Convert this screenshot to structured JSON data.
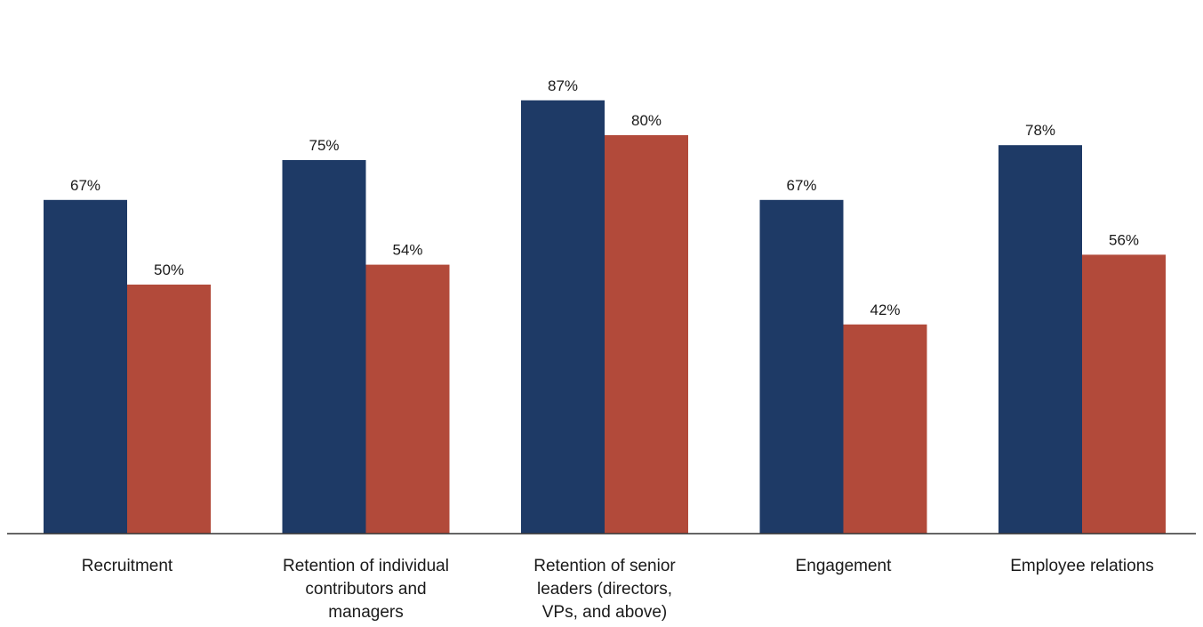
{
  "chart_data": {
    "type": "bar",
    "title": "",
    "xlabel": "",
    "ylabel": "",
    "ylim": [
      0,
      100
    ],
    "grid": false,
    "legend": "none",
    "categories": [
      "Recruitment",
      "Retention of individual contributors and managers",
      "Retention of senior leaders (directors, VPs, and above)",
      "Engagement",
      "Employee relations"
    ],
    "category_label_lines": [
      [
        "Recruitment"
      ],
      [
        "Retention of individual",
        "contributors and",
        "managers"
      ],
      [
        "Retention of senior",
        "leaders (directors,",
        "VPs, and above)"
      ],
      [
        "Engagement"
      ],
      [
        "Employee relations"
      ]
    ],
    "series": [
      {
        "values": [
          67,
          75,
          87,
          67,
          78
        ],
        "labels": [
          "67%",
          "75%",
          "87%",
          "67%",
          "78%"
        ],
        "color": "#1e3a66"
      },
      {
        "values": [
          50,
          54,
          80,
          42,
          56
        ],
        "labels": [
          "50%",
          "54%",
          "80%",
          "42%",
          "56%"
        ],
        "color": "#b24a3a"
      }
    ],
    "axis_color": "#333333"
  }
}
